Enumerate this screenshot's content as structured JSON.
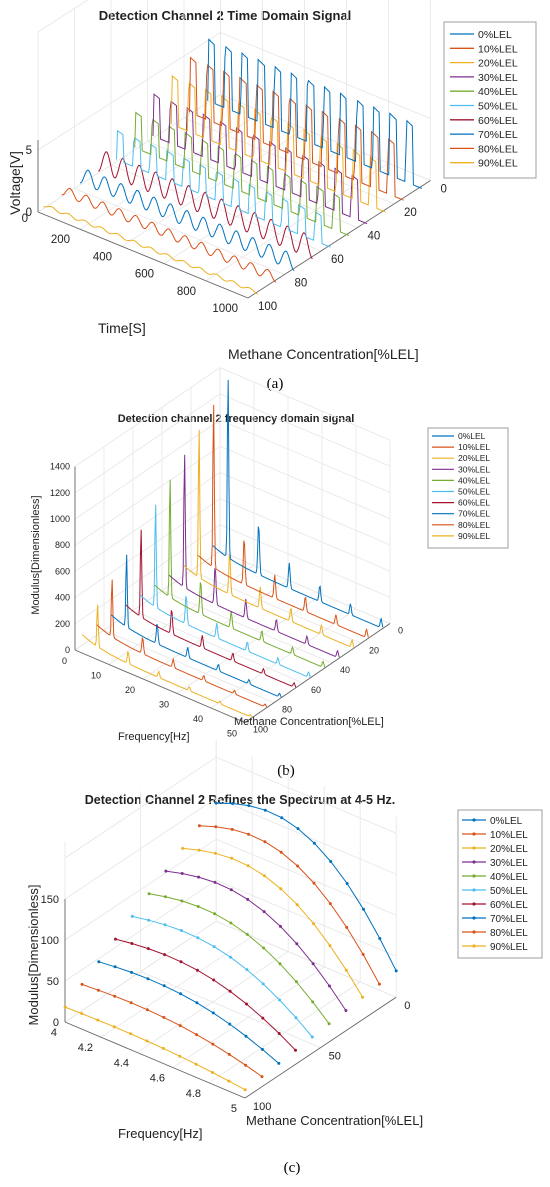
{
  "chart_data": [
    {
      "type": "line",
      "title": "Detection Channel 2 Time Domain Signal",
      "xlabel": "Time[S]",
      "ylabel": "Methane Concentration[%LEL]",
      "zlabel": "Voltage[V]",
      "x_ticks": [
        "0",
        "200",
        "400",
        "600",
        "800",
        "1000"
      ],
      "y_ticks": [
        "0",
        "20",
        "40",
        "60",
        "80",
        "100"
      ],
      "z_ticks": [
        "0",
        "5"
      ],
      "legend": [
        "0%LEL",
        "10%LEL",
        "20%LEL",
        "30%LEL",
        "40%LEL",
        "50%LEL",
        "60%LEL",
        "70%LEL",
        "80%LEL",
        "90%LEL"
      ],
      "legend_position": "right",
      "grid": true,
      "caption": "(a)"
    },
    {
      "type": "line",
      "title": "Detection channel 2 frequency domain signal",
      "xlabel": "Frequency[Hz]",
      "ylabel": "Methane Concentration[%LEL]",
      "zlabel": "Modulus[Dimensionless]",
      "x_ticks": [
        "0",
        "10",
        "20",
        "30",
        "40",
        "50"
      ],
      "y_ticks": [
        "0",
        "20",
        "40",
        "60",
        "80",
        "100"
      ],
      "z_ticks": [
        "0",
        "200",
        "400",
        "600",
        "800",
        "1000",
        "1200",
        "1400"
      ],
      "legend": [
        "0%LEL",
        "10%LEL",
        "20%LEL",
        "30%LEL",
        "40%LEL",
        "50%LEL",
        "60%LEL",
        "70%LEL",
        "80%LEL",
        "90%LEL"
      ],
      "legend_position": "right",
      "grid": true,
      "caption": "(b)"
    },
    {
      "type": "line",
      "title": "Detection Channel 2 Refines the Spectrum at 4-5 Hz.",
      "xlabel": "Frequency[Hz]",
      "ylabel": "Methane Concentration[%LEL]",
      "zlabel": "Modulus[Dimensionless]",
      "x_ticks": [
        "4",
        "4.2",
        "4.4",
        "4.6",
        "4.8",
        "5"
      ],
      "y_ticks": [
        "0",
        "50",
        "100"
      ],
      "z_ticks": [
        "0",
        "50",
        "100",
        "150"
      ],
      "legend": [
        "0%LEL",
        "10%LEL",
        "20%LEL",
        "30%LEL",
        "40%LEL",
        "50%LEL",
        "60%LEL",
        "70%LEL",
        "80%LEL",
        "90%LEL"
      ],
      "legend_position": "right",
      "grid": true,
      "caption": "(c)"
    }
  ],
  "colors": [
    "#0072BD",
    "#D95319",
    "#EDB120",
    "#7E2F8E",
    "#77AC30",
    "#4DBEEE",
    "#A2142F",
    "#0072BD",
    "#D95319",
    "#EDB120"
  ]
}
